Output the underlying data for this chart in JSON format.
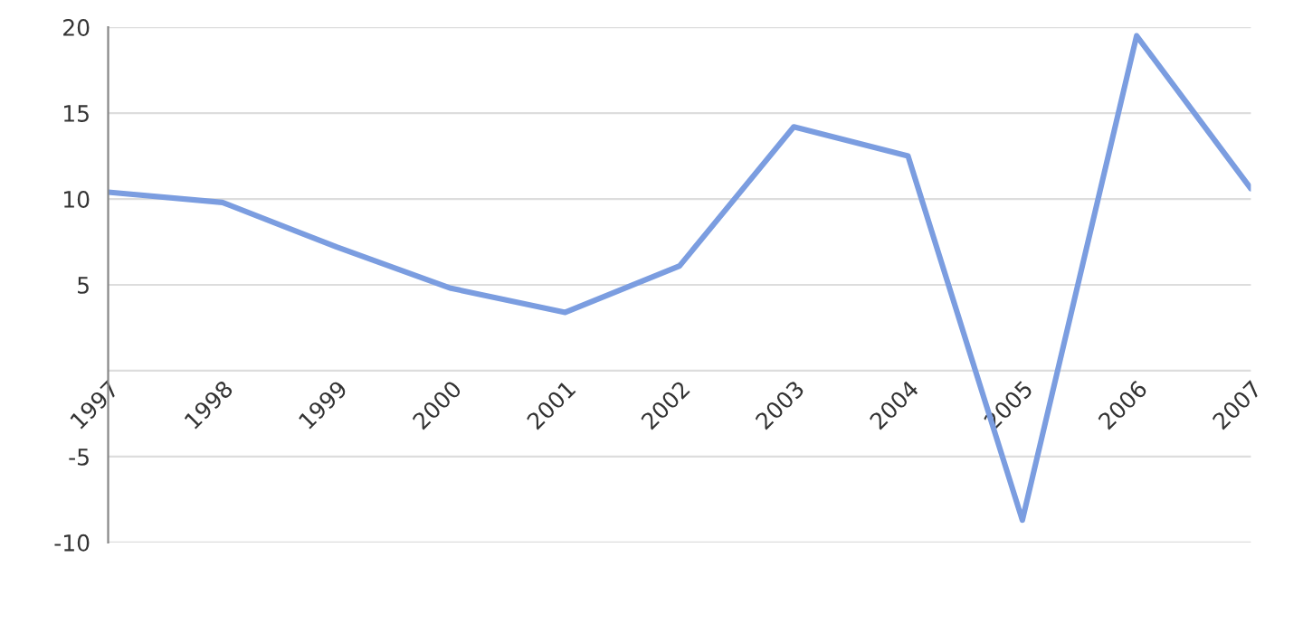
{
  "chart_data": {
    "type": "line",
    "categories": [
      "1997",
      "1998",
      "1999",
      "2000",
      "2001",
      "2002",
      "2003",
      "2004",
      "2005",
      "2006",
      "2007"
    ],
    "series": [
      {
        "color": "#7b9de0",
        "values": [
          10.4,
          9.8,
          7.2,
          4.8,
          3.4,
          6.1,
          14.2,
          12.5,
          -8.7,
          19.5,
          10.6
        ]
      }
    ],
    "ylim": [
      -10,
      20
    ],
    "yticks": [
      -10,
      -5,
      {
        "value": 0,
        "label": null
      },
      5,
      10,
      15,
      20
    ],
    "grid": "y",
    "marker": "none",
    "line_style": "solid"
  }
}
